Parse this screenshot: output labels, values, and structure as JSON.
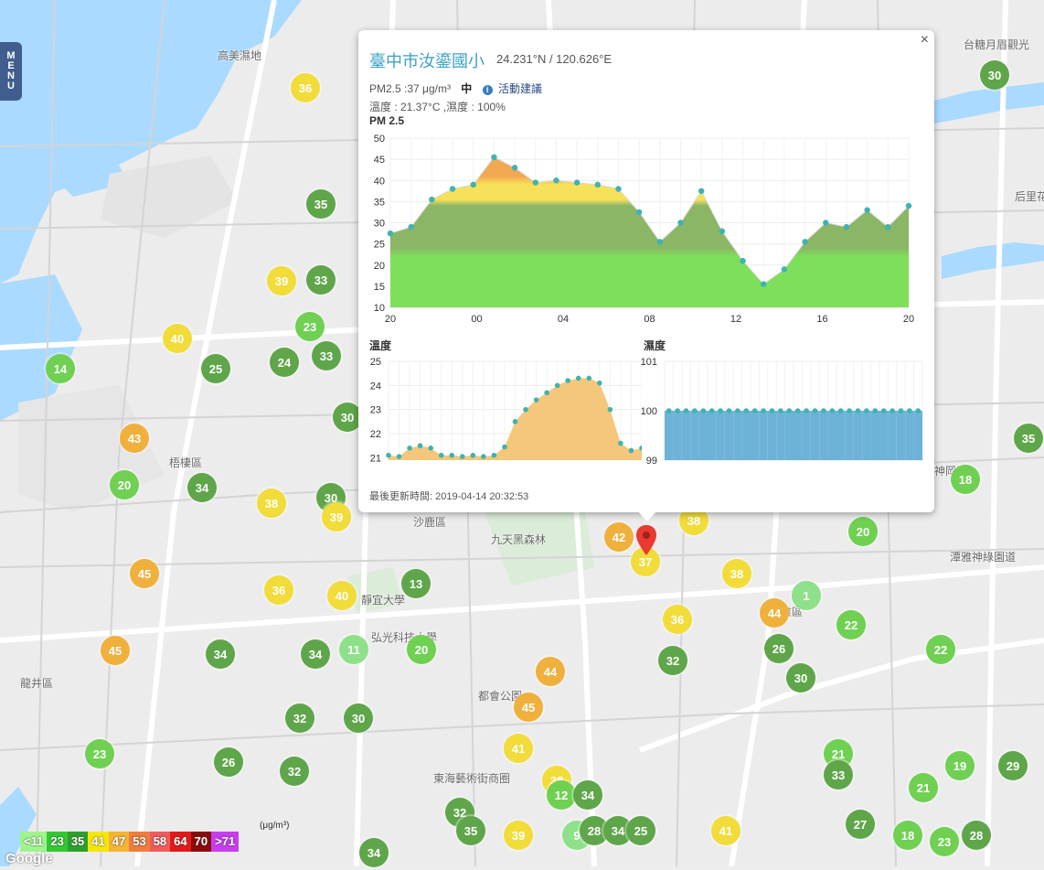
{
  "menu": {
    "label": "MENU"
  },
  "map_labels": [
    {
      "name": "area-kaomei-wetland",
      "text": "高美濕地"
    },
    {
      "name": "area-wuqi",
      "text": "梧棲區"
    },
    {
      "name": "area-shalu",
      "text": "沙鹿區"
    },
    {
      "name": "area-longjing",
      "text": "龍井區"
    },
    {
      "name": "area-jiutian-forest",
      "text": "九天黑森林"
    },
    {
      "name": "area-jingyi-univ",
      "text": "靜宜大學"
    },
    {
      "name": "area-hongguang-univ",
      "text": "弘光科技大學"
    },
    {
      "name": "area-duhui-park",
      "text": "都會公園"
    },
    {
      "name": "area-tunghai-art",
      "text": "東海藝術街商圈"
    },
    {
      "name": "area-dongya",
      "text": "大雅區"
    },
    {
      "name": "area-shennong",
      "text": "神岡區"
    },
    {
      "name": "area-tanya-bikeway",
      "text": "潭雅神綠園道"
    },
    {
      "name": "area-taitang-tour",
      "text": "台糖月眉觀光"
    },
    {
      "name": "area-houli",
      "text": "后里花"
    }
  ],
  "markers": [
    {
      "value": "36",
      "color": "#f2dc3a"
    },
    {
      "value": "35",
      "color": "#5fa64a"
    },
    {
      "value": "39",
      "color": "#f2dc3a"
    },
    {
      "value": "33",
      "color": "#5fa64a"
    },
    {
      "value": "23",
      "color": "#6fd052"
    },
    {
      "value": "40",
      "color": "#f2dc3a"
    },
    {
      "value": "14",
      "color": "#6fd052"
    },
    {
      "value": "25",
      "color": "#5fa64a"
    },
    {
      "value": "24",
      "color": "#5fa64a"
    },
    {
      "value": "33",
      "color": "#5fa64a"
    },
    {
      "value": "30",
      "color": "#5fa64a"
    },
    {
      "value": "43",
      "color": "#f0b03c"
    },
    {
      "value": "20",
      "color": "#6fd052"
    },
    {
      "value": "34",
      "color": "#5fa64a"
    },
    {
      "value": "38",
      "color": "#f2dc3a"
    },
    {
      "value": "30",
      "color": "#5fa64a"
    },
    {
      "value": "39",
      "color": "#f2dc3a"
    },
    {
      "value": "45",
      "color": "#f0b03c"
    },
    {
      "value": "36",
      "color": "#f2dc3a"
    },
    {
      "value": "40",
      "color": "#f2dc3a"
    },
    {
      "value": "13",
      "color": "#5fa64a"
    },
    {
      "value": "45",
      "color": "#f0b03c"
    },
    {
      "value": "34",
      "color": "#5fa64a"
    },
    {
      "value": "34",
      "color": "#5fa64a"
    },
    {
      "value": "11",
      "color": "#8fe08a"
    },
    {
      "value": "20",
      "color": "#6fd052"
    },
    {
      "value": "32",
      "color": "#5fa64a"
    },
    {
      "value": "30",
      "color": "#5fa64a"
    },
    {
      "value": "23",
      "color": "#6fd052"
    },
    {
      "value": "26",
      "color": "#5fa64a"
    },
    {
      "value": "32",
      "color": "#5fa64a"
    },
    {
      "value": "44",
      "color": "#f0b03c"
    },
    {
      "value": "45",
      "color": "#f0b03c"
    },
    {
      "value": "41",
      "color": "#f2dc3a"
    },
    {
      "value": "38",
      "color": "#f2dc3a"
    },
    {
      "value": "12",
      "color": "#6fd052"
    },
    {
      "value": "34",
      "color": "#5fa64a"
    },
    {
      "value": "32",
      "color": "#5fa64a"
    },
    {
      "value": "35",
      "color": "#5fa64a"
    },
    {
      "value": "39",
      "color": "#f2dc3a"
    },
    {
      "value": "9",
      "color": "#8fe08a"
    },
    {
      "value": "28",
      "color": "#5fa64a"
    },
    {
      "value": "34",
      "color": "#5fa64a"
    },
    {
      "value": "25",
      "color": "#5fa64a"
    },
    {
      "value": "13",
      "color": "#6fd052"
    },
    {
      "value": "34",
      "color": "#5fa64a"
    },
    {
      "value": "42",
      "color": "#f0b03c"
    },
    {
      "value": "37",
      "color": "#f2dc3a"
    },
    {
      "value": "38",
      "color": "#f2dc3a"
    },
    {
      "value": "38",
      "color": "#f2dc3a"
    },
    {
      "value": "36",
      "color": "#f2dc3a"
    },
    {
      "value": "32",
      "color": "#5fa64a"
    },
    {
      "value": "41",
      "color": "#f2dc3a"
    },
    {
      "value": "1",
      "color": "#8fe08a"
    },
    {
      "value": "44",
      "color": "#f0b03c"
    },
    {
      "value": "26",
      "color": "#5fa64a"
    },
    {
      "value": "30",
      "color": "#5fa64a"
    },
    {
      "value": "22",
      "color": "#6fd052"
    },
    {
      "value": "20",
      "color": "#6fd052"
    },
    {
      "value": "22",
      "color": "#6fd052"
    },
    {
      "value": "18",
      "color": "#6fd052"
    },
    {
      "value": "35",
      "color": "#5fa64a"
    },
    {
      "value": "30",
      "color": "#5fa64a"
    },
    {
      "value": "21",
      "color": "#6fd052"
    },
    {
      "value": "33",
      "color": "#5fa64a"
    },
    {
      "value": "21",
      "color": "#6fd052"
    },
    {
      "value": "19",
      "color": "#6fd052"
    },
    {
      "value": "29",
      "color": "#5fa64a"
    },
    {
      "value": "27",
      "color": "#5fa64a"
    },
    {
      "value": "27",
      "color": "#5fa64a"
    },
    {
      "value": "27",
      "color": "#5fa64a"
    },
    {
      "value": "18",
      "color": "#6fd052"
    },
    {
      "value": "23",
      "color": "#6fd052"
    },
    {
      "value": "28",
      "color": "#5fa64a"
    },
    {
      "value": "20",
      "color": "#6fd052"
    },
    {
      "value": "21",
      "color": "#6fd052"
    },
    {
      "value": "34",
      "color": "#5fa64a"
    },
    {
      "value": "34",
      "color": "#5fa64a"
    }
  ],
  "popup": {
    "close_label": "×",
    "station_name": "臺中市汝鎏國小",
    "coords": "24.231°N / 120.626°E",
    "pm_text": "PM2.5 :37 μg/m³",
    "level": "中",
    "advice_label": "活動建議",
    "weather_text": "溫度 : 21.37°C ,濕度 : 100%",
    "updated": "最後更新時間: 2019-04-14 20:32:53",
    "pm_chart_title": "PM 2.5",
    "temp_chart_title": "溫度",
    "hum_chart_title": "濕度"
  },
  "legend": {
    "unit": "(μg/m³)",
    "cells": [
      {
        "label": "<11",
        "color": "#9ef58d"
      },
      {
        "label": "23",
        "color": "#32c832"
      },
      {
        "label": "35",
        "color": "#2ca02c"
      },
      {
        "label": "41",
        "color": "#f5e60a"
      },
      {
        "label": "47",
        "color": "#f5b433"
      },
      {
        "label": "53",
        "color": "#f07d3c"
      },
      {
        "label": "58",
        "color": "#f05a5a"
      },
      {
        "label": "64",
        "color": "#e11919"
      },
      {
        "label": "70",
        "color": "#8b0a0a"
      },
      {
        "label": ">71",
        "color": "#c83cf0"
      }
    ]
  },
  "google_logo": "Google",
  "chart_data": [
    {
      "type": "area",
      "title": "PM 2.5",
      "x_tick_labels": [
        "20",
        "00",
        "04",
        "08",
        "12",
        "16",
        "20"
      ],
      "y_ticks": [
        10,
        15,
        20,
        25,
        30,
        35,
        40,
        45,
        50
      ],
      "ylim": [
        10,
        50
      ],
      "values": [
        27.5,
        29,
        35.5,
        38,
        39,
        45.5,
        43,
        39.5,
        40,
        39.5,
        39,
        38,
        32.5,
        25.5,
        30,
        37.5,
        28,
        21,
        15.5,
        19,
        25.5,
        30,
        29,
        33,
        29,
        34
      ],
      "band_colors": {
        "low": "#7ee05a",
        "mid": "#8bb665",
        "high": "#f7e05a",
        "top": "#f2a850"
      },
      "grid": true
    },
    {
      "type": "area",
      "title": "溫度",
      "y_ticks": [
        21,
        22,
        23,
        24,
        25
      ],
      "ylim": [
        20.9,
        25
      ],
      "values": [
        21.1,
        21.05,
        21.4,
        21.5,
        21.4,
        21.1,
        21.1,
        21.05,
        21.1,
        21.05,
        21.1,
        21.45,
        22.5,
        23,
        23.4,
        23.7,
        24,
        24.2,
        24.3,
        24.3,
        24.1,
        23,
        21.6,
        21.3,
        21.4
      ],
      "fill": "#f4c77a",
      "grid": true
    },
    {
      "type": "bar",
      "title": "濕度",
      "y_ticks": [
        99,
        100,
        101
      ],
      "ylim": [
        99,
        101
      ],
      "values": [
        100,
        100,
        100,
        100,
        100,
        100,
        100,
        100,
        100,
        100,
        100,
        100,
        100,
        100,
        100,
        100,
        100,
        100,
        100,
        100,
        100,
        100,
        100,
        100,
        100,
        100,
        100,
        100,
        100,
        100
      ],
      "fill": "#6db3d9",
      "grid": true
    }
  ]
}
